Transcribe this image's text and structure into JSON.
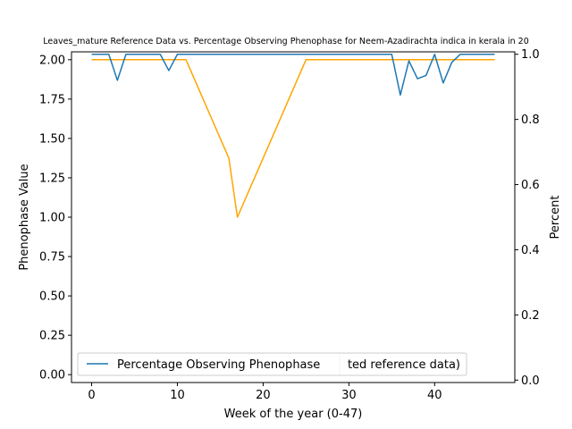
{
  "chart_data": {
    "type": "line",
    "title": "Leaves_mature Reference Data vs. Percentage Observing Phenophase for Neem-Azadirachta indica in kerala in 20",
    "xlabel": "Week of the year (0-47)",
    "ylabel": "Phenophase Value",
    "y2label": "Percent",
    "xlim": [
      -2.35,
      49.35
    ],
    "ylim": [
      -0.05,
      2.05
    ],
    "y2lim": [
      -0.0075,
      1.0075
    ],
    "x_ticks": [
      0,
      10,
      20,
      30,
      40
    ],
    "y_ticks": [
      0.0,
      0.25,
      0.5,
      0.75,
      1.0,
      1.25,
      1.5,
      1.75,
      2.0
    ],
    "y2_ticks": [
      0.0,
      0.2,
      0.4,
      0.6,
      0.8,
      1.0
    ],
    "legend_position": "lower-left",
    "series": [
      {
        "name": "",
        "axis": "left",
        "color": "#ffa500",
        "x": [
          0,
          1,
          2,
          3,
          4,
          5,
          6,
          7,
          8,
          9,
          10,
          11,
          12,
          13,
          14,
          15,
          16,
          17,
          18,
          19,
          20,
          21,
          22,
          23,
          24,
          25,
          26,
          27,
          28,
          29,
          30,
          31,
          32,
          33,
          34,
          35,
          36,
          37,
          38,
          39,
          40,
          41,
          42,
          43,
          44,
          45,
          46,
          47
        ],
        "values": [
          2,
          2,
          2,
          2,
          2,
          2,
          2,
          2,
          2,
          2,
          2,
          2,
          1.875,
          1.75,
          1.625,
          1.5,
          1.375,
          1,
          1.125,
          1.25,
          1.375,
          1.5,
          1.625,
          1.75,
          1.875,
          2,
          2,
          2,
          2,
          2,
          2,
          2,
          2,
          2,
          2,
          2,
          2,
          2,
          2,
          2,
          2,
          2,
          2,
          2,
          2,
          2,
          2,
          2
        ]
      },
      {
        "name": "Percentage Observing Phenophase",
        "axis": "right",
        "color": "#1f77b4",
        "x": [
          0,
          1,
          2,
          3,
          4,
          5,
          6,
          7,
          8,
          9,
          10,
          11,
          12,
          13,
          14,
          15,
          16,
          17,
          18,
          19,
          20,
          21,
          22,
          23,
          24,
          25,
          26,
          27,
          28,
          29,
          30,
          31,
          32,
          33,
          34,
          35,
          36,
          37,
          38,
          39,
          40,
          41,
          42,
          43,
          44,
          45,
          46,
          47
        ],
        "values": [
          1,
          1,
          1,
          0.92,
          1,
          1,
          1,
          1,
          1,
          0.95,
          1,
          1,
          1,
          1,
          1,
          1,
          1,
          1,
          1,
          1,
          1,
          1,
          1,
          1,
          1,
          1,
          1,
          1,
          1,
          1,
          1,
          1,
          1,
          1,
          1,
          1,
          0.875,
          0.98,
          0.925,
          0.935,
          1,
          0.912,
          0.975,
          1,
          1,
          1,
          1,
          1
        ]
      }
    ],
    "legend_entries": [
      {
        "label": "Percentage Observing Phenophase",
        "color": "#1f77b4"
      },
      {
        "label": "ted reference data)",
        "color": "#ffa500"
      }
    ]
  }
}
